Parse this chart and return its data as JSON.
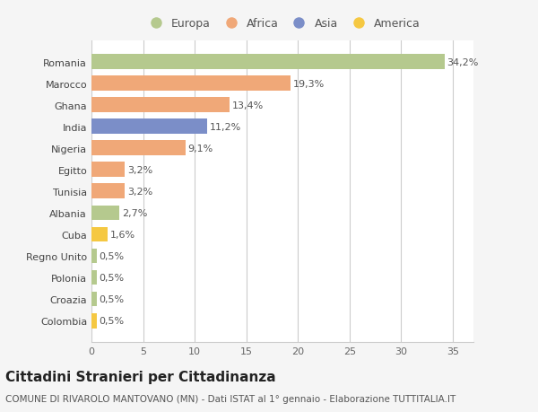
{
  "categories": [
    "Romania",
    "Marocco",
    "Ghana",
    "India",
    "Nigeria",
    "Egitto",
    "Tunisia",
    "Albania",
    "Cuba",
    "Regno Unito",
    "Polonia",
    "Croazia",
    "Colombia"
  ],
  "values": [
    34.2,
    19.3,
    13.4,
    11.2,
    9.1,
    3.2,
    3.2,
    2.7,
    1.6,
    0.5,
    0.5,
    0.5,
    0.5
  ],
  "labels": [
    "34,2%",
    "19,3%",
    "13,4%",
    "11,2%",
    "9,1%",
    "3,2%",
    "3,2%",
    "2,7%",
    "1,6%",
    "0,5%",
    "0,5%",
    "0,5%",
    "0,5%"
  ],
  "colors": [
    "#b5c98e",
    "#f0a878",
    "#f0a878",
    "#7b8ec8",
    "#f0a878",
    "#f0a878",
    "#f0a878",
    "#b5c98e",
    "#f5c842",
    "#b5c98e",
    "#b5c98e",
    "#b5c98e",
    "#f5c842"
  ],
  "legend_labels": [
    "Europa",
    "Africa",
    "Asia",
    "America"
  ],
  "legend_colors": [
    "#b5c98e",
    "#f0a878",
    "#7b8ec8",
    "#f5c842"
  ],
  "title": "Cittadini Stranieri per Cittadinanza",
  "subtitle": "COMUNE DI RIVAROLO MANTOVANO (MN) - Dati ISTAT al 1° gennaio - Elaborazione TUTTITALIA.IT",
  "xlim": [
    0,
    37
  ],
  "xticks": [
    0,
    5,
    10,
    15,
    20,
    25,
    30,
    35
  ],
  "plot_bg_color": "#ffffff",
  "fig_bg_color": "#f5f5f5",
  "grid_color": "#cccccc",
  "bar_height": 0.7,
  "label_fontsize": 8,
  "tick_fontsize": 8,
  "title_fontsize": 11,
  "subtitle_fontsize": 7.5,
  "legend_fontsize": 9
}
